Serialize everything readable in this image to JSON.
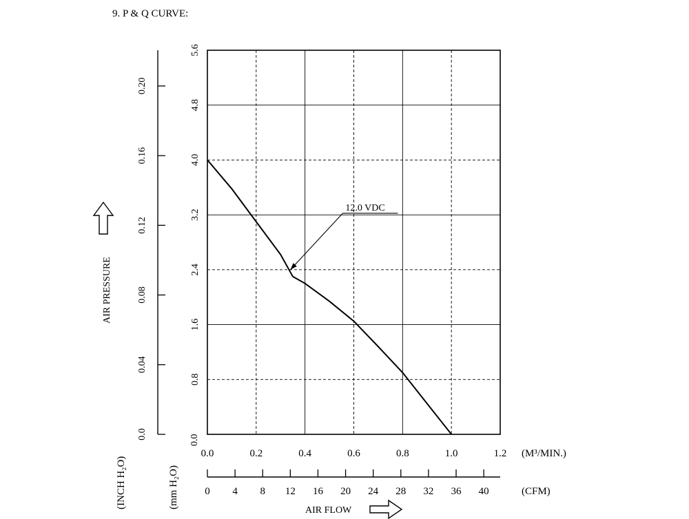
{
  "chart_data": {
    "type": "line",
    "section_title": "9. P & Q CURVE:",
    "x_axis_primary": {
      "unit": "(M³/MIN.)",
      "range": [
        0,
        1.2
      ],
      "ticks": [
        "0.0",
        "0.2",
        "0.4",
        "0.6",
        "0.8",
        "1.0",
        "1.2"
      ],
      "tick_values": [
        0,
        0.2,
        0.4,
        0.6,
        0.8,
        1.0,
        1.2
      ]
    },
    "x_axis_secondary": {
      "unit": "(CFM)",
      "label": "AIR FLOW",
      "range": [
        0,
        42.38
      ],
      "ticks": [
        "0",
        "4",
        "8",
        "12",
        "16",
        "20",
        "24",
        "28",
        "32",
        "36",
        "40"
      ],
      "tick_values": [
        0,
        4,
        8,
        12,
        16,
        20,
        24,
        28,
        32,
        36,
        40
      ]
    },
    "y_axis_primary": {
      "unit": "(mm H₂O)",
      "range": [
        0,
        5.6
      ],
      "ticks": [
        "0.8",
        "1.6",
        "2.4",
        "3.2",
        "4.0",
        "4.8",
        "5.6"
      ],
      "tick_values": [
        0.8,
        1.6,
        2.4,
        3.2,
        4.0,
        4.8,
        5.6
      ]
    },
    "y_axis_secondary": {
      "unit": "(INCH H₂O)",
      "label": "AIR PRESSURE",
      "range": [
        0,
        0.2205
      ],
      "ticks": [
        "0.0",
        "0.04",
        "0.08",
        "0.12",
        "0.16",
        "0.20"
      ],
      "tick_values": [
        0,
        0.04,
        0.08,
        0.12,
        0.16,
        0.2
      ]
    },
    "grid": true,
    "series": [
      {
        "name": "12.0 VDC",
        "x": [
          0.0,
          0.1,
          0.2,
          0.3,
          0.35,
          0.4,
          0.5,
          0.6,
          0.7,
          0.8,
          0.9,
          1.0
        ],
        "y": [
          4.0,
          3.58,
          3.1,
          2.62,
          2.3,
          2.2,
          1.94,
          1.65,
          1.28,
          0.9,
          0.45,
          0.0
        ]
      }
    ],
    "annotation": {
      "text": "12.0 VDC",
      "points_to": {
        "x": 0.34,
        "y": 2.4
      }
    }
  }
}
